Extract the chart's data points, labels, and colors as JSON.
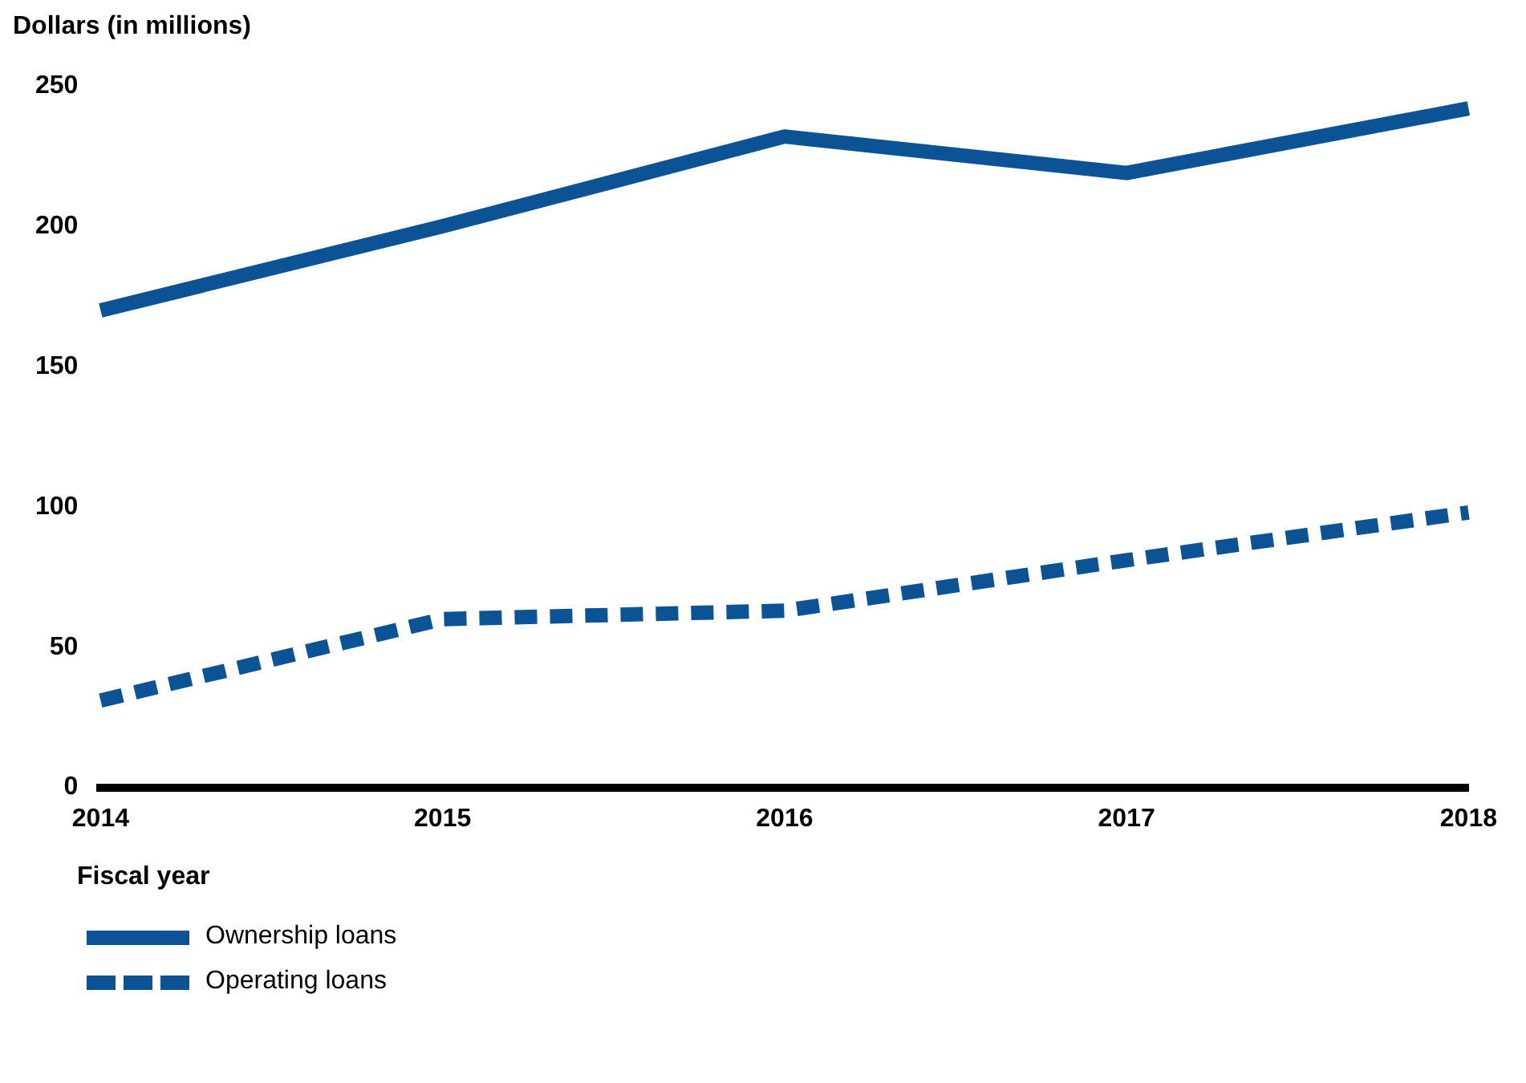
{
  "chart_data": {
    "type": "line",
    "ylabel": "Dollars (in millions)",
    "xlabel": "Fiscal year",
    "categories": [
      "2014",
      "2015",
      "2016",
      "2017",
      "2018"
    ],
    "series": [
      {
        "name": "Ownership loans",
        "color": "#0b5394",
        "line_style": "solid",
        "values": [
          170,
          200,
          232,
          219,
          242
        ]
      },
      {
        "name": "Operating loans",
        "color": "#0b5394",
        "line_style": "dashed",
        "values": [
          31,
          60,
          63,
          81,
          98
        ]
      }
    ],
    "ylim": [
      0,
      250
    ],
    "yticks": [
      0,
      50,
      100,
      150,
      200,
      250
    ],
    "grid": false,
    "legend": "bottom",
    "marker": "none"
  }
}
